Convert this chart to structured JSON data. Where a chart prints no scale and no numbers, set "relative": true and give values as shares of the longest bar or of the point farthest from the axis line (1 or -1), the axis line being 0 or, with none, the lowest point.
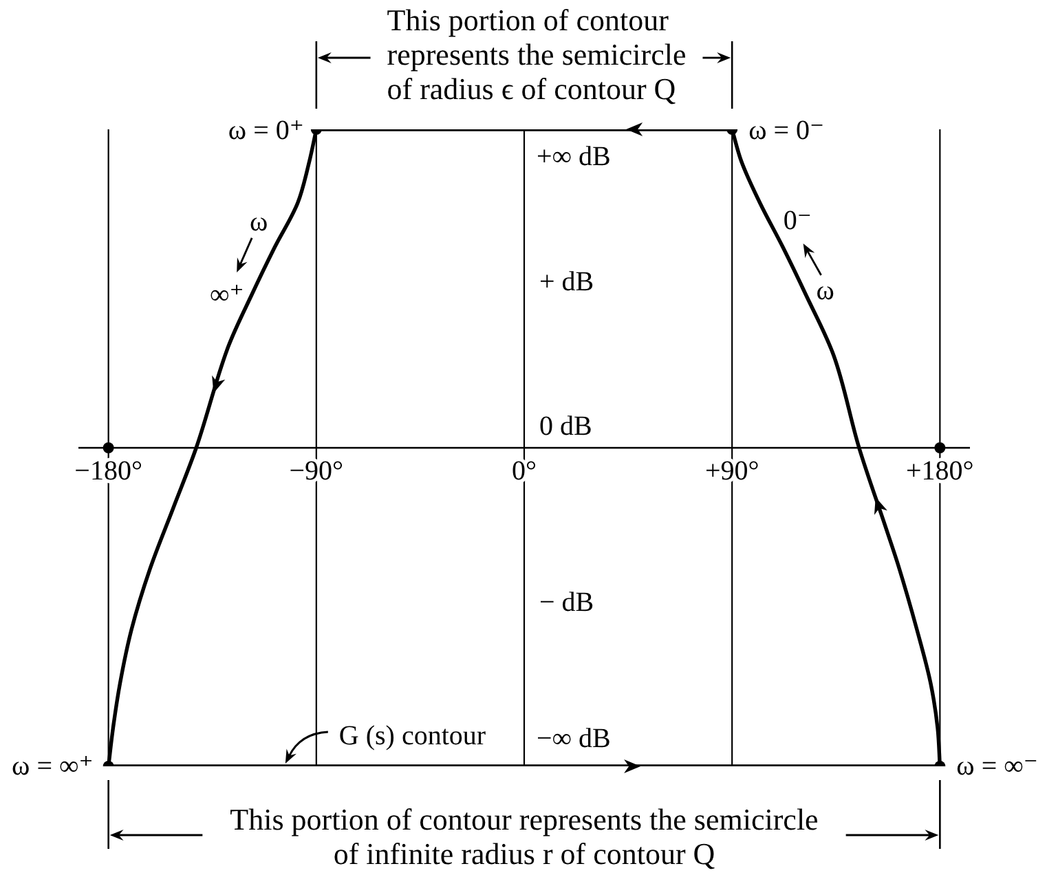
{
  "chart_data": {
    "type": "line",
    "relative": true,
    "xlim": [
      -193,
      193
    ],
    "xticks": [
      {
        "value": -180,
        "label": "−180°"
      },
      {
        "value": -90,
        "label": "−90°"
      },
      {
        "value": 0,
        "label": "0°"
      },
      {
        "value": 90,
        "label": "+90°"
      },
      {
        "value": 180,
        "label": "+180°"
      }
    ],
    "grid": "x",
    "series": [
      {
        "color": "#000000",
        "x": [
          -90,
          -93,
          -98,
          -108,
          -118,
          -128,
          -142,
          -152,
          -162,
          -170,
          -175,
          -178,
          -180
        ],
        "values": [
          1,
          0.9,
          0.77,
          0.63,
          0.48,
          0.32,
          0,
          -0.19,
          -0.38,
          -0.57,
          -0.74,
          -0.88,
          -1
        ]
      },
      {
        "color": "#000000",
        "x": [
          -180,
          180
        ],
        "values": [
          -1,
          -1
        ]
      },
      {
        "color": "#000000",
        "x": [
          180,
          179,
          176,
          170,
          162,
          157,
          145,
          134,
          122,
          112,
          102,
          94,
          90
        ],
        "values": [
          -1,
          -0.88,
          -0.74,
          -0.57,
          -0.37,
          -0.26,
          0,
          0.29,
          0.48,
          0.63,
          0.77,
          0.9,
          1
        ]
      },
      {
        "color": "#000000",
        "x": [
          90,
          -90
        ],
        "values": [
          1,
          1
        ]
      },
      {
        "type": "scatter",
        "color": "#000000",
        "marker": "circle",
        "x": [
          -90,
          90,
          -180,
          180,
          -180,
          180
        ],
        "values": [
          1,
          1,
          -1,
          -1,
          0,
          0
        ]
      }
    ],
    "annotations": [
      {
        "text": "This portion of contour represents the semicircle of radius ϵ of contour Q",
        "x": 0,
        "y": 1
      },
      {
        "text": "This portion of contour represents the semicircle of infinite radius r of contour Q",
        "x": 0,
        "y": -1
      },
      {
        "text": "ω = 0⁺",
        "x": -90,
        "y": 1
      },
      {
        "text": "ω = 0⁻",
        "x": 90,
        "y": 1
      },
      {
        "text": "ω = ∞⁺",
        "x": -180,
        "y": -1
      },
      {
        "text": "ω = ∞⁻",
        "x": 180,
        "y": -1
      },
      {
        "text": "ω",
        "x": -103,
        "y": 0.7
      },
      {
        "text": "∞⁺",
        "x": -118,
        "y": 0.48
      },
      {
        "text": "0⁻",
        "x": 107,
        "y": 0.7
      },
      {
        "text": "ω",
        "x": 122,
        "y": 0.48
      },
      {
        "text": "G (s) contour",
        "x": -104,
        "y": -1
      },
      {
        "text": "+∞ dB",
        "x": 0,
        "y": 1
      },
      "+ dB",
      "0 dB",
      "− dB",
      {
        "text": "−∞ dB",
        "x": 0,
        "y": -1
      }
    ]
  }
}
